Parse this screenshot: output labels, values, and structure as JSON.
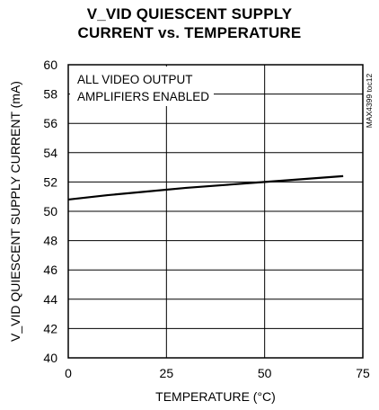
{
  "chart_data": {
    "type": "line",
    "title_lines": [
      "V_VID QUIESCENT SUPPLY",
      "CURRENT vs. TEMPERATURE"
    ],
    "xlabel": "TEMPERATURE (°C)",
    "ylabel": "V_VID QUIESCENT SUPPLY CURRENT (mA)",
    "xlim": [
      0,
      75
    ],
    "ylim": [
      40,
      60
    ],
    "x_ticks": [
      0,
      25,
      50,
      75
    ],
    "y_ticks": [
      40,
      42,
      44,
      46,
      48,
      50,
      52,
      54,
      56,
      58,
      60
    ],
    "grid": true,
    "annotation_lines": [
      "ALL VIDEO OUTPUT",
      "AMPLIFIERS ENABLED"
    ],
    "side_label": "MAX4399 toc12",
    "series": [
      {
        "x": [
          0,
          10,
          20,
          30,
          40,
          50,
          60,
          70
        ],
        "y": [
          50.8,
          51.1,
          51.35,
          51.6,
          51.8,
          52.0,
          52.2,
          52.4
        ]
      }
    ]
  }
}
